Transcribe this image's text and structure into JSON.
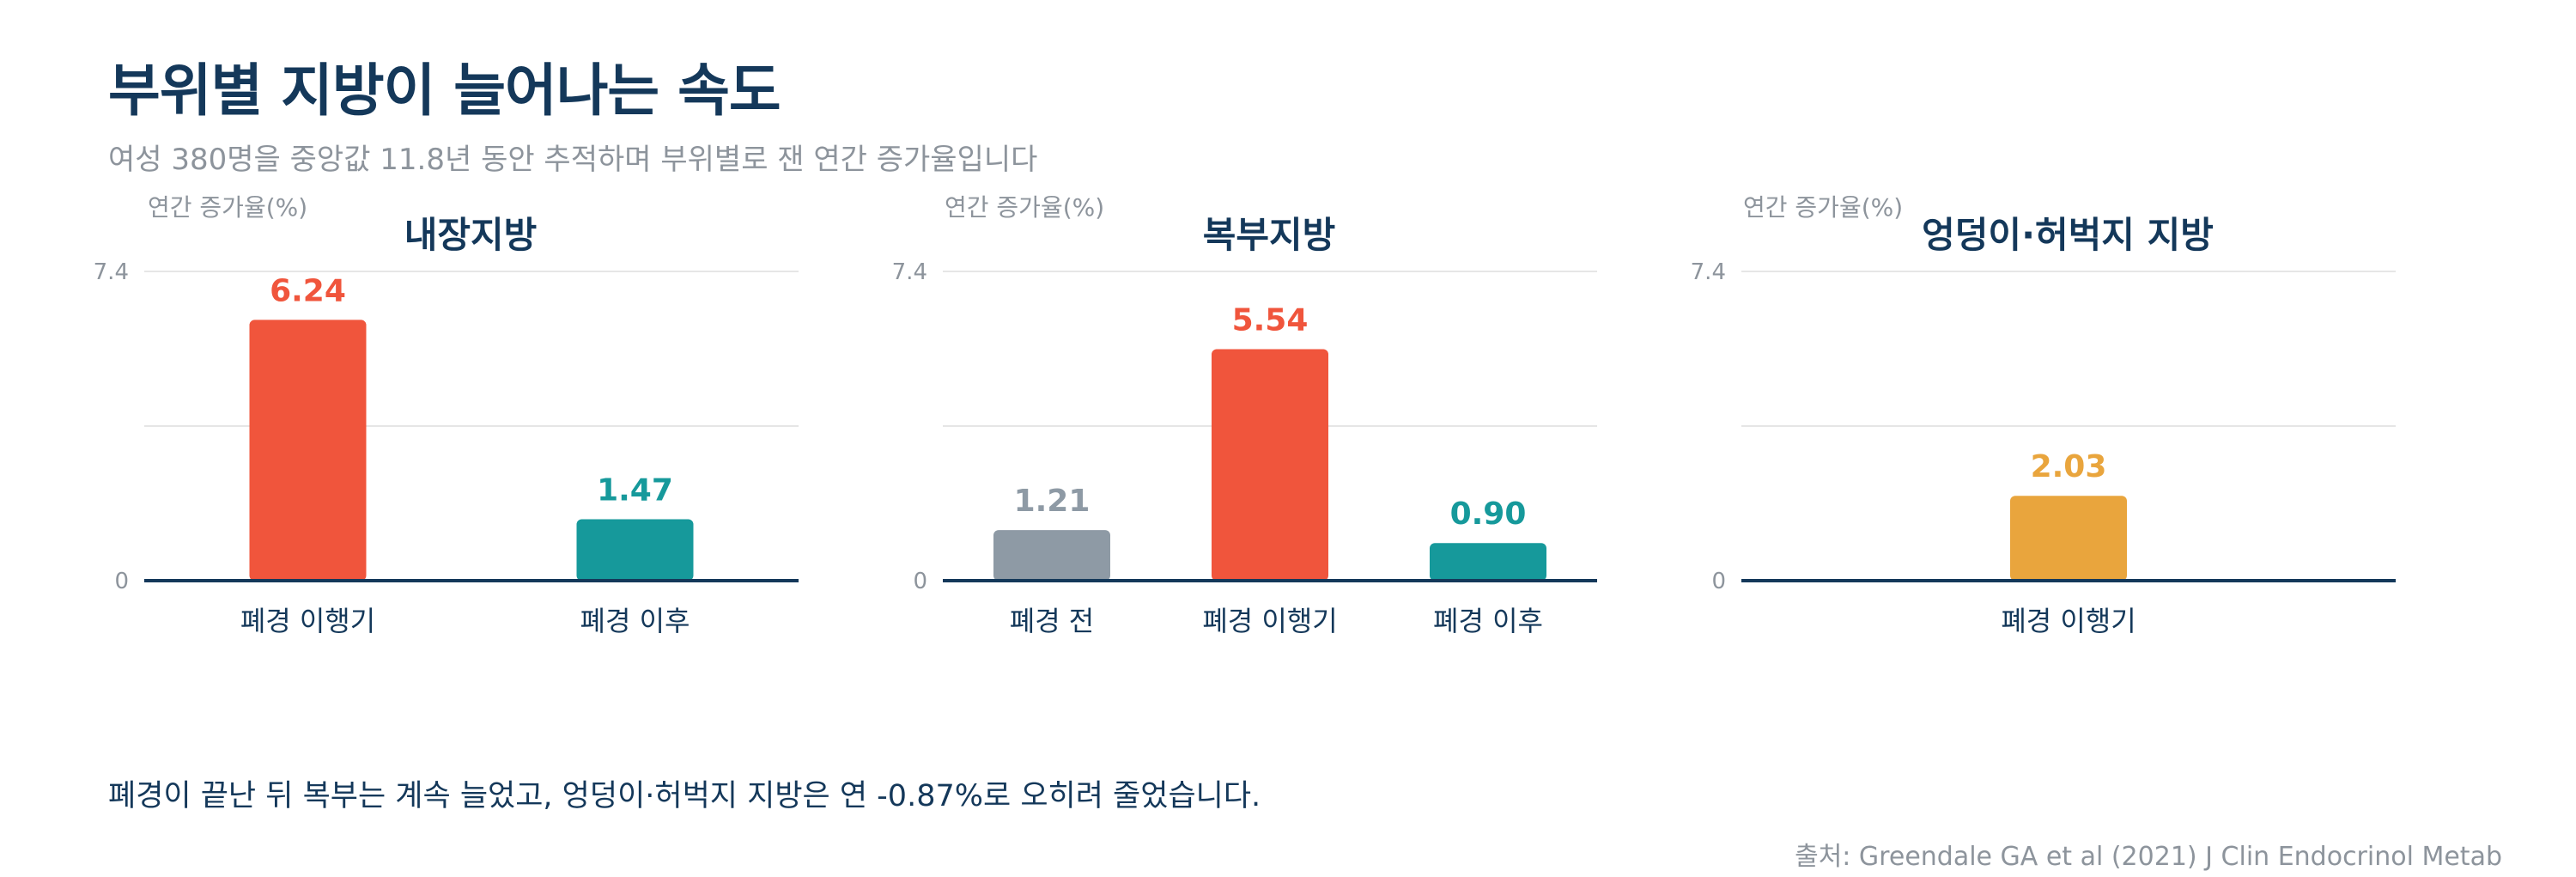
{
  "title": "부위별 지방이 늘어나는 속도",
  "subtitle": "여성 380명을 중앙값 11.8년 동안 추적하며 부위별로 잰 연간 증가율입니다",
  "note": "폐경이 끝난 뒤 복부는 계속 늘었고, 엉덩이·허벅지 지방은 연 -0.87%로 오히려 줄었습니다.",
  "source": "출처: Greendale GA et al (2021) J Clin Endocrinol Metab",
  "colors": {
    "rising": "#f0553c",
    "after": "#16999b",
    "before": "#8e9aa5",
    "hip": "#e9a53d",
    "axis": "#14385a",
    "grid": "#e6e6e6",
    "muted": "#8d949c"
  },
  "chart_data": [
    {
      "type": "bar",
      "title": "내장지방",
      "ylabel": "연간 증가율(%)",
      "ylim": [
        0,
        7.4
      ],
      "yticks": [
        0,
        7.4
      ],
      "categories": [
        "폐경 이행기",
        "폐경 이후"
      ],
      "values": [
        6.24,
        1.47
      ],
      "value_labels": [
        "6.24",
        "1.47"
      ],
      "colors": [
        "#f0553c",
        "#16999b"
      ]
    },
    {
      "type": "bar",
      "title": "복부지방",
      "ylabel": "연간 증가율(%)",
      "ylim": [
        0,
        7.4
      ],
      "yticks": [
        0,
        7.4
      ],
      "categories": [
        "폐경 전",
        "폐경 이행기",
        "폐경 이후"
      ],
      "values": [
        1.21,
        5.54,
        0.9
      ],
      "value_labels": [
        "1.21",
        "5.54",
        "0.90"
      ],
      "colors": [
        "#8e9aa5",
        "#f0553c",
        "#16999b"
      ]
    },
    {
      "type": "bar",
      "title": "엉덩이·허벅지 지방",
      "ylabel": "연간 증가율(%)",
      "ylim": [
        0,
        7.4
      ],
      "yticks": [
        0,
        7.4
      ],
      "categories": [
        "폐경 이행기"
      ],
      "values": [
        2.03
      ],
      "value_labels": [
        "2.03"
      ],
      "colors": [
        "#e9a53d"
      ]
    }
  ]
}
